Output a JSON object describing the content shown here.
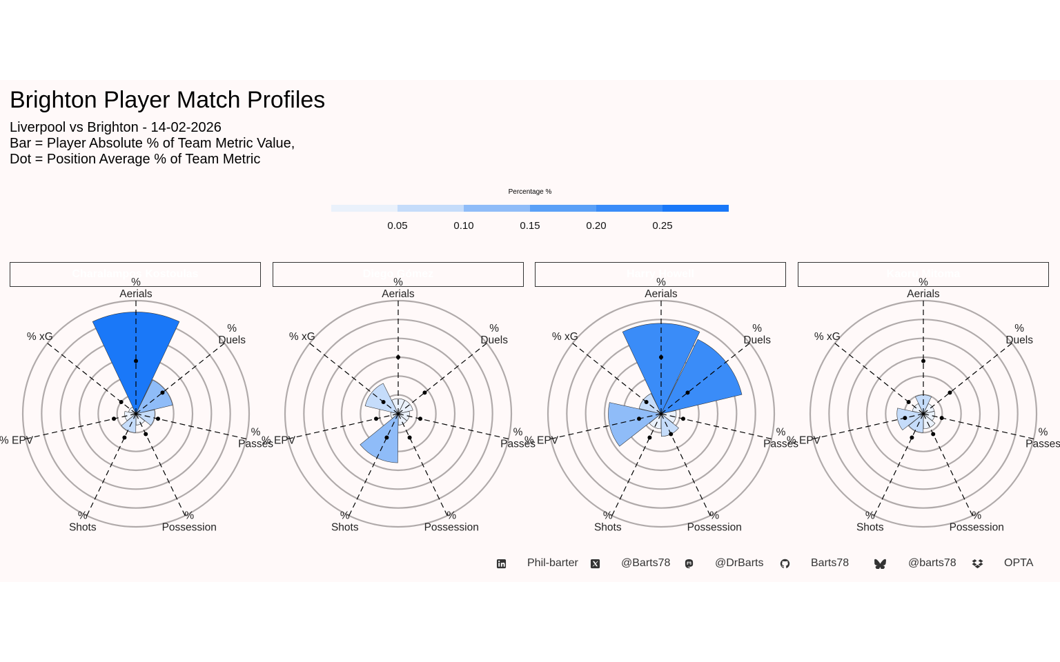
{
  "title": "Brighton Player Match Profiles",
  "subtitle_lines": [
    "Liverpool vs Brighton - 14-02-2026",
    "Bar = Player Absolute % of Team Metric Value,",
    "Dot = Position Average % of Team Metric"
  ],
  "legend": {
    "title": "Percentage %",
    "ticks": [
      "0.05",
      "0.10",
      "0.15",
      "0.20",
      "0.25"
    ],
    "colors": [
      "#eaf1fb",
      "#c5dcfa",
      "#8fbcf8",
      "#5aa0f7",
      "#3a8cf8",
      "#1a78f8"
    ]
  },
  "colors": {
    "background": "#fff9f9",
    "strip": "#1a78f8",
    "grid": "#b0aaaa"
  },
  "chart_data": {
    "type": "bar",
    "subtype": "polar-radar-facets",
    "categories": [
      "% Aerials",
      "% Duels",
      "% Passes",
      "% Possession",
      "% Shots",
      "% EPV",
      "% xG"
    ],
    "axis_labels": [
      {
        "l1": "%",
        "l2": "Aerials"
      },
      {
        "l1": "%",
        "l2": "Duels"
      },
      {
        "l1": "%",
        "l2": "Passes"
      },
      {
        "l1": "%",
        "l2": "Possession"
      },
      {
        "l1": "%",
        "l2": "Shots"
      },
      {
        "l1": "",
        "l2": "% EPV"
      },
      {
        "l1": "",
        "l2": "% xG"
      }
    ],
    "rlim": [
      0,
      0.3
    ],
    "grid_rings": [
      0.05,
      0.1,
      0.15,
      0.2,
      0.25,
      0.3
    ],
    "series": [
      {
        "name": "Charalampos Kostoulas",
        "values": [
          0.27,
          0.1,
          0.05,
          0.03,
          0.05,
          0.03,
          0.02
        ],
        "position_avg": [
          0.14,
          0.09,
          0.06,
          0.06,
          0.07,
          0.06,
          0.05
        ]
      },
      {
        "name": "Diego Gómez",
        "values": [
          0.04,
          0.04,
          0.03,
          0.03,
          0.13,
          0.02,
          0.09
        ],
        "position_avg": [
          0.15,
          0.09,
          0.06,
          0.07,
          0.07,
          0.06,
          0.05
        ]
      },
      {
        "name": "Harry Howell",
        "values": [
          0.24,
          0.22,
          0.04,
          0.06,
          0.04,
          0.14,
          0.06
        ],
        "position_avg": [
          0.15,
          0.09,
          0.06,
          0.06,
          0.07,
          0.06,
          0.05
        ]
      },
      {
        "name": "Kaoru Mitoma",
        "values": [
          0.05,
          0.03,
          0.03,
          0.04,
          0.05,
          0.07,
          0.03
        ],
        "position_avg": [
          0.14,
          0.09,
          0.05,
          0.06,
          0.07,
          0.05,
          0.05
        ]
      }
    ]
  },
  "caption": [
    {
      "icon": "linkedin-icon",
      "text": "Phil-barter"
    },
    {
      "icon": "x-icon",
      "text": "@Barts78"
    },
    {
      "icon": "mastodon-icon",
      "text": "@DrBarts"
    },
    {
      "icon": "github-icon",
      "text": "Barts78"
    },
    {
      "icon": "bluesky-icon",
      "text": "@barts78"
    },
    {
      "icon": "dropbox-icon",
      "text": "OPTA"
    }
  ]
}
